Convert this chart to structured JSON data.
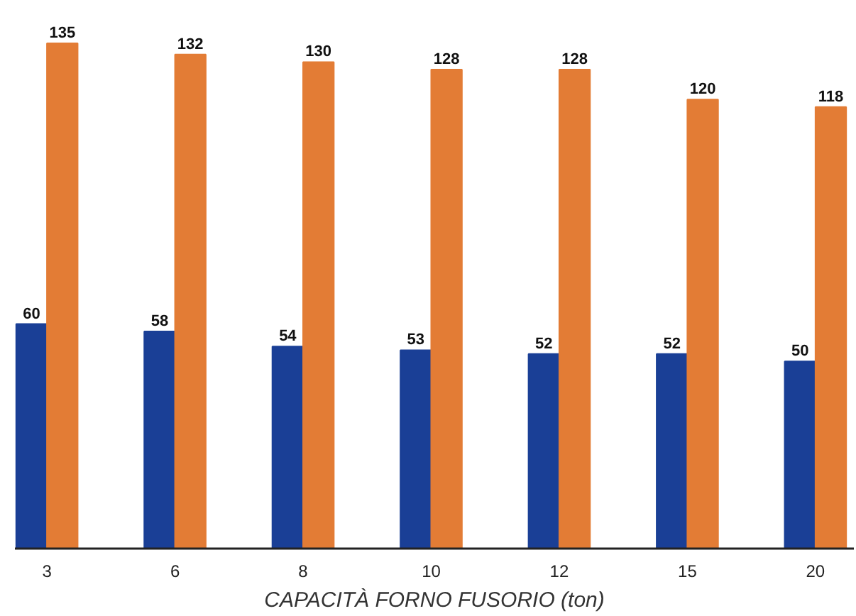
{
  "chart_data": {
    "type": "bar",
    "xlabel": "CAPACITÀ FORNO FUSORIO (ton)",
    "categories": [
      "3",
      "6",
      "8",
      "10",
      "12",
      "15",
      "20"
    ],
    "series": [
      {
        "color": "#1a3f96",
        "values": [
          60,
          58,
          54,
          53,
          52,
          52,
          50
        ]
      },
      {
        "color": "#e37c35",
        "values": [
          135,
          132,
          130,
          128,
          128,
          120,
          118
        ]
      }
    ],
    "data_labels": true,
    "tick_labels": "x",
    "grid": false
  }
}
